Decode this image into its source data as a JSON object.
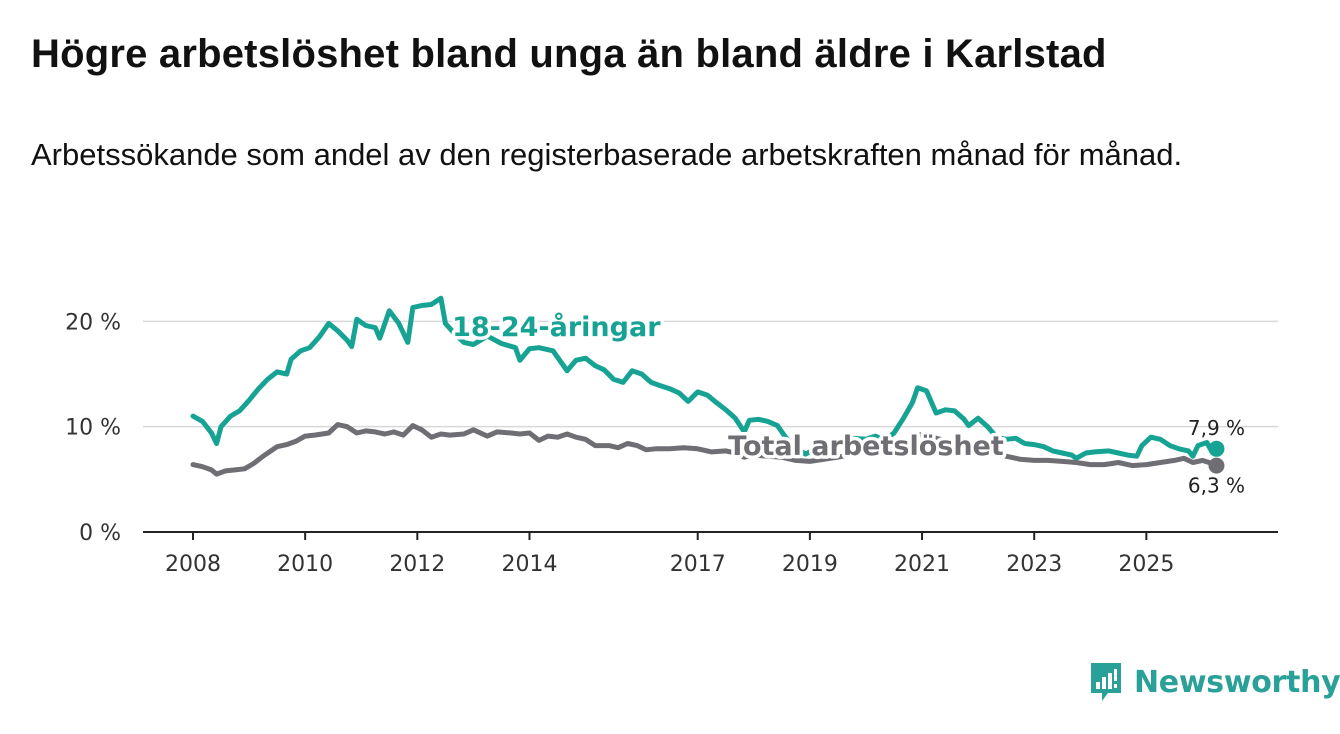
{
  "title": "Högre arbetslöshet bland unga än bland äldre i Karlstad",
  "subtitle": "Arbetssökande som andel av den registerbaserade arbetskraften månad för månad.",
  "brand": {
    "name": "Newsworthy",
    "color": "#2aa198",
    "icon": "bar-chart-logo-icon"
  },
  "chart_data": {
    "type": "line",
    "y_ticks": [
      0,
      10,
      20
    ],
    "y_tick_labels": [
      "0 %",
      "10 %",
      "20 %"
    ],
    "ylim": [
      0,
      22.5
    ],
    "xlim": [
      2008.0,
      2026.42
    ],
    "x_ticks": [
      2008,
      2010,
      2012,
      2014,
      2017,
      2019,
      2021,
      2023,
      2025
    ],
    "x_tick_labels": [
      "2008",
      "2010",
      "2012",
      "2014",
      "2017",
      "2019",
      "2021",
      "2023",
      "2025"
    ],
    "grid": true,
    "series": [
      {
        "name": "18-24-åringar",
        "color": "#16a394",
        "end_label": "7,9 %",
        "points": [
          [
            2008.0,
            11.0
          ],
          [
            2008.17,
            10.5
          ],
          [
            2008.33,
            9.4
          ],
          [
            2008.42,
            8.4
          ],
          [
            2008.5,
            10.0
          ],
          [
            2008.67,
            11.0
          ],
          [
            2008.83,
            11.5
          ],
          [
            2009.0,
            12.5
          ],
          [
            2009.17,
            13.6
          ],
          [
            2009.33,
            14.5
          ],
          [
            2009.5,
            15.2
          ],
          [
            2009.67,
            15.0
          ],
          [
            2009.75,
            16.4
          ],
          [
            2009.92,
            17.2
          ],
          [
            2010.08,
            17.5
          ],
          [
            2010.25,
            18.5
          ],
          [
            2010.42,
            19.8
          ],
          [
            2010.58,
            19.1
          ],
          [
            2010.75,
            18.2
          ],
          [
            2010.83,
            17.6
          ],
          [
            2010.92,
            20.2
          ],
          [
            2011.08,
            19.6
          ],
          [
            2011.25,
            19.4
          ],
          [
            2011.33,
            18.4
          ],
          [
            2011.5,
            21.0
          ],
          [
            2011.67,
            19.8
          ],
          [
            2011.83,
            18.0
          ],
          [
            2011.92,
            21.3
          ],
          [
            2012.08,
            21.5
          ],
          [
            2012.25,
            21.6
          ],
          [
            2012.42,
            22.2
          ],
          [
            2012.5,
            19.8
          ],
          [
            2012.67,
            18.8
          ],
          [
            2012.83,
            18.0
          ],
          [
            2013.0,
            17.8
          ],
          [
            2013.25,
            18.6
          ],
          [
            2013.5,
            17.9
          ],
          [
            2013.75,
            17.5
          ],
          [
            2013.83,
            16.3
          ],
          [
            2014.0,
            17.4
          ],
          [
            2014.17,
            17.5
          ],
          [
            2014.42,
            17.2
          ],
          [
            2014.58,
            16.0
          ],
          [
            2014.67,
            15.3
          ],
          [
            2014.83,
            16.3
          ],
          [
            2015.0,
            16.5
          ],
          [
            2015.17,
            15.8
          ],
          [
            2015.33,
            15.4
          ],
          [
            2015.5,
            14.5
          ],
          [
            2015.67,
            14.2
          ],
          [
            2015.83,
            15.3
          ],
          [
            2016.0,
            15.0
          ],
          [
            2016.17,
            14.2
          ],
          [
            2016.33,
            13.9
          ],
          [
            2016.5,
            13.6
          ],
          [
            2016.67,
            13.2
          ],
          [
            2016.83,
            12.4
          ],
          [
            2017.0,
            13.3
          ],
          [
            2017.17,
            13.0
          ],
          [
            2017.33,
            12.3
          ],
          [
            2017.5,
            11.6
          ],
          [
            2017.67,
            10.8
          ],
          [
            2017.83,
            9.5
          ],
          [
            2017.92,
            10.6
          ],
          [
            2018.08,
            10.7
          ],
          [
            2018.25,
            10.5
          ],
          [
            2018.42,
            10.1
          ],
          [
            2018.58,
            8.9
          ],
          [
            2018.75,
            8.0
          ],
          [
            2018.92,
            7.4
          ],
          [
            2019.08,
            7.8
          ],
          [
            2019.25,
            8.2
          ],
          [
            2019.5,
            8.6
          ],
          [
            2019.75,
            8.9
          ],
          [
            2020.0,
            8.8
          ],
          [
            2020.17,
            9.1
          ],
          [
            2020.33,
            8.7
          ],
          [
            2020.5,
            9.4
          ],
          [
            2020.67,
            10.8
          ],
          [
            2020.83,
            12.3
          ],
          [
            2020.92,
            13.7
          ],
          [
            2021.08,
            13.4
          ],
          [
            2021.25,
            11.3
          ],
          [
            2021.42,
            11.6
          ],
          [
            2021.58,
            11.5
          ],
          [
            2021.75,
            10.7
          ],
          [
            2021.83,
            10.1
          ],
          [
            2022.0,
            10.8
          ],
          [
            2022.17,
            10.0
          ],
          [
            2022.33,
            9.0
          ],
          [
            2022.5,
            8.8
          ],
          [
            2022.67,
            8.9
          ],
          [
            2022.83,
            8.4
          ],
          [
            2023.0,
            8.3
          ],
          [
            2023.17,
            8.1
          ],
          [
            2023.33,
            7.7
          ],
          [
            2023.5,
            7.5
          ],
          [
            2023.67,
            7.3
          ],
          [
            2023.75,
            7.0
          ],
          [
            2023.92,
            7.5
          ],
          [
            2024.08,
            7.6
          ],
          [
            2024.33,
            7.7
          ],
          [
            2024.5,
            7.5
          ],
          [
            2024.67,
            7.3
          ],
          [
            2024.83,
            7.2
          ],
          [
            2024.92,
            8.2
          ],
          [
            2025.08,
            9.0
          ],
          [
            2025.25,
            8.8
          ],
          [
            2025.42,
            8.2
          ],
          [
            2025.58,
            7.9
          ],
          [
            2025.75,
            7.7
          ],
          [
            2025.83,
            7.2
          ],
          [
            2025.92,
            8.2
          ],
          [
            2026.08,
            8.5
          ],
          [
            2026.17,
            7.6
          ],
          [
            2026.25,
            7.9
          ]
        ]
      },
      {
        "name": "Total arbetslöshet",
        "color": "#6e6e74",
        "end_label": "6,3 %",
        "points": [
          [
            2008.0,
            6.4
          ],
          [
            2008.17,
            6.2
          ],
          [
            2008.33,
            5.9
          ],
          [
            2008.42,
            5.5
          ],
          [
            2008.58,
            5.8
          ],
          [
            2008.75,
            5.9
          ],
          [
            2008.92,
            6.0
          ],
          [
            2009.08,
            6.5
          ],
          [
            2009.25,
            7.2
          ],
          [
            2009.5,
            8.1
          ],
          [
            2009.67,
            8.3
          ],
          [
            2009.83,
            8.6
          ],
          [
            2010.0,
            9.1
          ],
          [
            2010.17,
            9.2
          ],
          [
            2010.42,
            9.4
          ],
          [
            2010.58,
            10.2
          ],
          [
            2010.75,
            10.0
          ],
          [
            2010.92,
            9.4
          ],
          [
            2011.08,
            9.6
          ],
          [
            2011.25,
            9.5
          ],
          [
            2011.42,
            9.3
          ],
          [
            2011.58,
            9.5
          ],
          [
            2011.75,
            9.2
          ],
          [
            2011.92,
            10.1
          ],
          [
            2012.08,
            9.7
          ],
          [
            2012.25,
            9.0
          ],
          [
            2012.42,
            9.3
          ],
          [
            2012.58,
            9.2
          ],
          [
            2012.83,
            9.3
          ],
          [
            2013.0,
            9.7
          ],
          [
            2013.25,
            9.1
          ],
          [
            2013.42,
            9.5
          ],
          [
            2013.67,
            9.4
          ],
          [
            2013.83,
            9.3
          ],
          [
            2014.0,
            9.4
          ],
          [
            2014.17,
            8.7
          ],
          [
            2014.33,
            9.1
          ],
          [
            2014.5,
            9.0
          ],
          [
            2014.67,
            9.3
          ],
          [
            2014.83,
            9.0
          ],
          [
            2015.0,
            8.8
          ],
          [
            2015.17,
            8.2
          ],
          [
            2015.42,
            8.2
          ],
          [
            2015.58,
            8.0
          ],
          [
            2015.75,
            8.4
          ],
          [
            2015.92,
            8.2
          ],
          [
            2016.08,
            7.8
          ],
          [
            2016.25,
            7.9
          ],
          [
            2016.5,
            7.9
          ],
          [
            2016.75,
            8.0
          ],
          [
            2017.0,
            7.9
          ],
          [
            2017.25,
            7.6
          ],
          [
            2017.5,
            7.7
          ],
          [
            2017.67,
            7.5
          ],
          [
            2017.83,
            7.1
          ],
          [
            2018.0,
            7.3
          ],
          [
            2018.25,
            7.2
          ],
          [
            2018.5,
            7.1
          ],
          [
            2018.75,
            6.8
          ],
          [
            2019.0,
            6.7
          ],
          [
            2019.25,
            6.9
          ],
          [
            2019.5,
            7.1
          ],
          [
            2019.75,
            7.4
          ],
          [
            2020.0,
            7.8
          ],
          [
            2020.25,
            7.7
          ],
          [
            2020.5,
            8.3
          ],
          [
            2020.75,
            8.7
          ],
          [
            2020.92,
            9.2
          ],
          [
            2021.08,
            9.3
          ],
          [
            2021.25,
            8.9
          ],
          [
            2021.5,
            8.6
          ],
          [
            2021.75,
            8.2
          ],
          [
            2022.0,
            7.9
          ],
          [
            2022.25,
            7.6
          ],
          [
            2022.5,
            7.2
          ],
          [
            2022.75,
            6.9
          ],
          [
            2023.0,
            6.8
          ],
          [
            2023.25,
            6.8
          ],
          [
            2023.5,
            6.7
          ],
          [
            2023.75,
            6.6
          ],
          [
            2024.0,
            6.4
          ],
          [
            2024.25,
            6.4
          ],
          [
            2024.5,
            6.6
          ],
          [
            2024.75,
            6.3
          ],
          [
            2025.0,
            6.4
          ],
          [
            2025.25,
            6.6
          ],
          [
            2025.5,
            6.8
          ],
          [
            2025.67,
            7.0
          ],
          [
            2025.83,
            6.6
          ],
          [
            2026.0,
            6.8
          ],
          [
            2026.17,
            6.5
          ],
          [
            2026.25,
            6.3
          ]
        ]
      }
    ],
    "annotations": [
      {
        "text": "18-24-åringar",
        "series": 0,
        "anchor": [
          2012.62,
          18.6
        ],
        "align": "start"
      },
      {
        "text": "Total arbetslöshet",
        "series": 1,
        "anchor": [
          2020.0,
          7.3
        ],
        "align": "middle"
      }
    ]
  }
}
